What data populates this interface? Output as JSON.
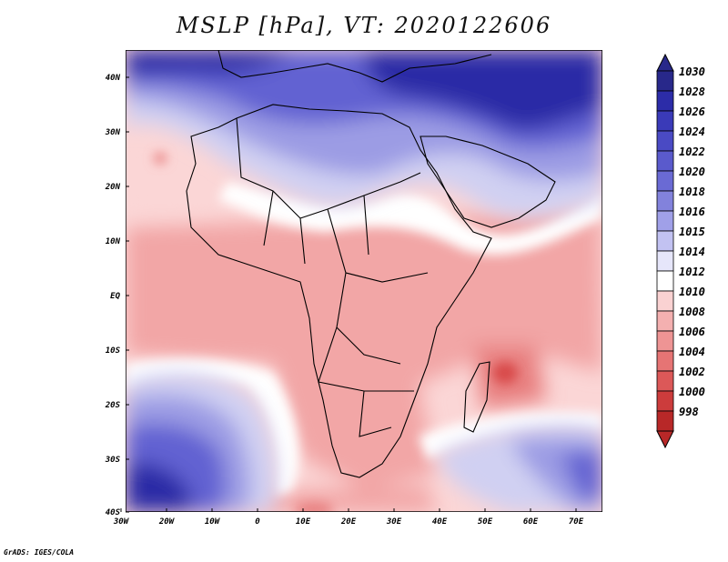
{
  "title": "MSLP [hPa], VT: 2020122606",
  "credit": "GrADS: IGES/COLA",
  "map": {
    "lat_labels": [
      "40N",
      "30N",
      "20N",
      "10N",
      "EQ",
      "10S",
      "20S",
      "30S",
      "40S"
    ],
    "lon_labels": [
      "30W",
      "20W",
      "10W",
      "0",
      "10E",
      "20E",
      "30E",
      "40E",
      "50E",
      "60E",
      "70E"
    ],
    "colors": {
      "strong_high": "#2a2aa6",
      "high": "#6262d2",
      "mid_high": "#9c9ce4",
      "light_high": "#d0d0f2",
      "neutral": "#ffffff",
      "light_low": "#fbd6d6",
      "low": "#f2a6a6",
      "mid_low": "#e88080",
      "deep_low": "#d84848",
      "coast": "#000000"
    }
  },
  "colorbar": {
    "labels": [
      "1030",
      "1028",
      "1026",
      "1024",
      "1022",
      "1020",
      "1018",
      "1016",
      "1015",
      "1014",
      "1012",
      "1010",
      "1008",
      "1006",
      "1004",
      "1002",
      "1000",
      "998"
    ],
    "colors": [
      "#28288a",
      "#2c2ca8",
      "#3a3ab8",
      "#4a4ac4",
      "#5a5acc",
      "#6a6ad4",
      "#8282dc",
      "#a0a0e8",
      "#c2c2f2",
      "#e6e6fa",
      "#ffffff",
      "#fad2d2",
      "#f4b0b0",
      "#ee9494",
      "#e67474",
      "#dc5858",
      "#cc3c3c",
      "#b82828"
    ]
  }
}
